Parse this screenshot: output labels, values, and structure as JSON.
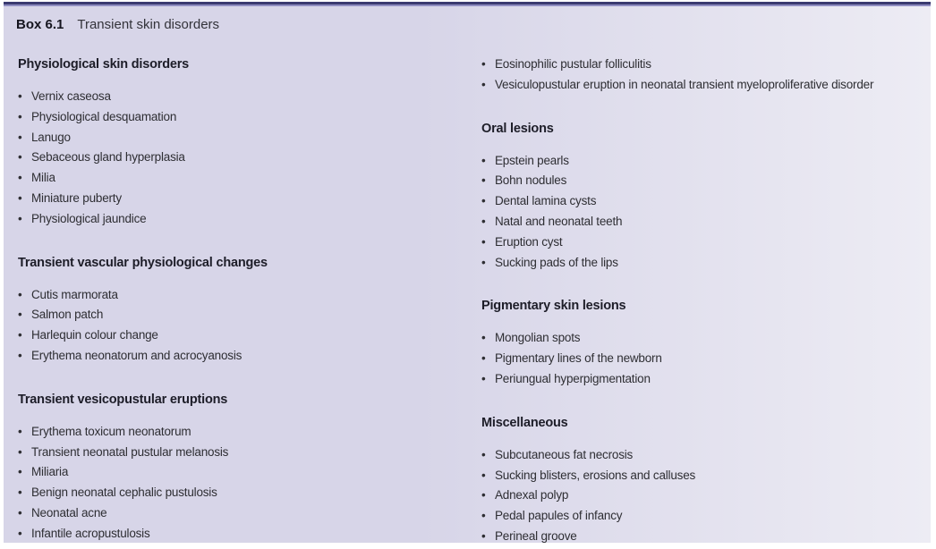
{
  "header": {
    "label": "Box 6.1",
    "title": "Transient skin disorders"
  },
  "colors": {
    "top_bar": "#3a3a70",
    "top_bar_accent": "#8f8dc1",
    "box_bg_left": "#d7d5e8",
    "box_bg_right": "#edecf4",
    "heading_text": "#1d1d28",
    "body_text": "#2e2e33"
  },
  "bullet_glyph": "•",
  "columns": [
    {
      "sections": [
        {
          "heading": "Physiological skin disorders",
          "items": [
            "Vernix caseosa",
            "Physiological desquamation",
            "Lanugo",
            "Sebaceous gland hyperplasia",
            "Milia",
            "Miniature puberty",
            "Physiological jaundice"
          ]
        },
        {
          "heading": "Transient vascular physiological changes",
          "items": [
            "Cutis marmorata",
            "Salmon patch",
            "Harlequin colour change",
            "Erythema neonatorum and acrocyanosis"
          ]
        },
        {
          "heading": "Transient vesicopustular eruptions",
          "items": [
            "Erythema toxicum neonatorum",
            "Transient neonatal pustular melanosis",
            "Miliaria",
            "Benign neonatal cephalic pustulosis",
            "Neonatal acne",
            "Infantile acropustulosis"
          ]
        }
      ]
    },
    {
      "sections": [
        {
          "heading": null,
          "items": [
            "Eosinophilic pustular folliculitis",
            "Vesiculopustular eruption in neonatal transient myeloproliferative disorder"
          ]
        },
        {
          "heading": "Oral lesions",
          "items": [
            "Epstein pearls",
            "Bohn nodules",
            "Dental lamina cysts",
            "Natal and neonatal teeth",
            "Eruption cyst",
            "Sucking pads of the lips"
          ]
        },
        {
          "heading": "Pigmentary skin lesions",
          "items": [
            "Mongolian spots",
            "Pigmentary lines of the newborn",
            "Periungual hyperpigmentation"
          ]
        },
        {
          "heading": "Miscellaneous",
          "items": [
            "Subcutaneous fat necrosis",
            "Sucking blisters, erosions and calluses",
            "Adnexal polyp",
            "Pedal papules of infancy",
            "Perineal groove"
          ]
        }
      ]
    }
  ]
}
